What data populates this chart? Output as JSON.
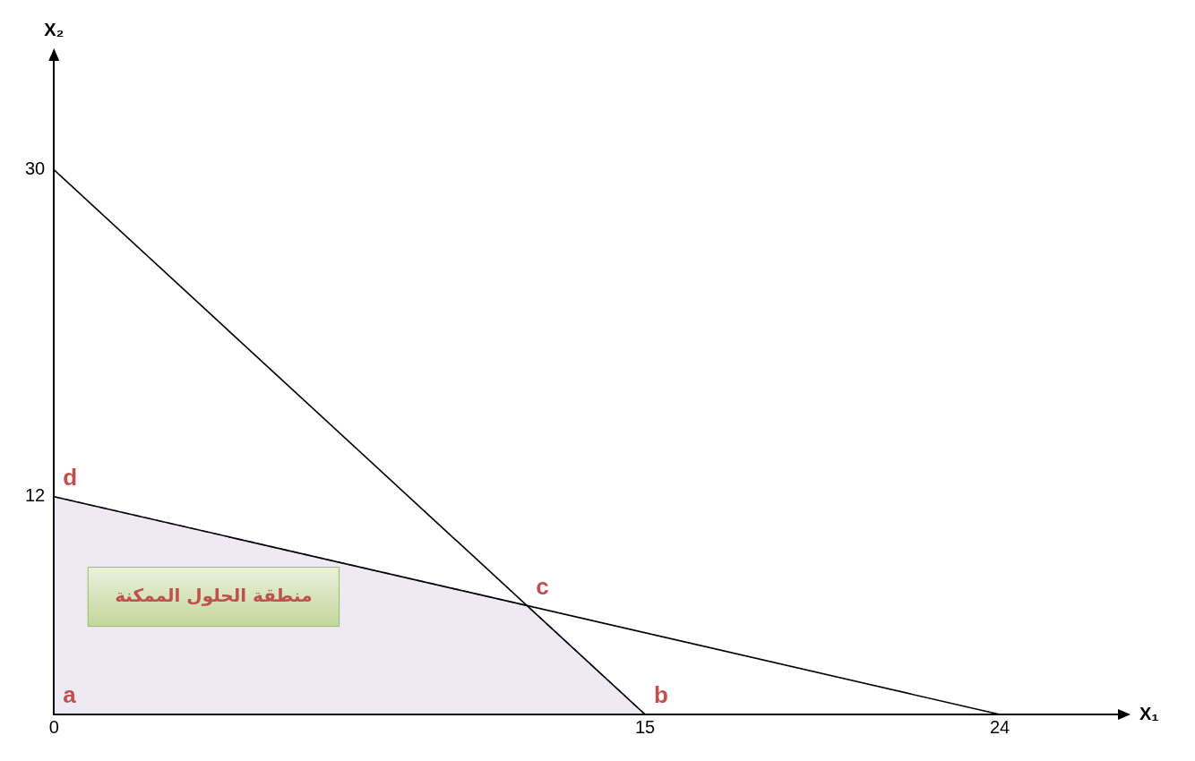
{
  "chart_data": {
    "type": "line",
    "xlabel": "X₁",
    "ylabel": "X₂",
    "xlim": [
      0,
      27
    ],
    "ylim": [
      0,
      36
    ],
    "xticks": [
      0,
      15,
      24
    ],
    "yticks": [
      12,
      30
    ],
    "grid": false,
    "marker": "none",
    "series": [
      {
        "x": [
          0,
          15
        ],
        "values": [
          30,
          0
        ],
        "color": "#000000"
      },
      {
        "x": [
          0,
          24
        ],
        "values": [
          12,
          0
        ],
        "color": "#000000"
      },
      {
        "type": "area",
        "x": [
          0,
          12,
          15
        ],
        "values": [
          12,
          6,
          0
        ],
        "color": "#8064a2",
        "line_style": "dashed"
      }
    ],
    "annotations": [
      {
        "text": "a",
        "x": 0,
        "y": 0
      },
      {
        "text": "b",
        "x": 15,
        "y": 0
      },
      {
        "text": "c",
        "x": 12,
        "y": 6
      },
      {
        "text": "d",
        "x": 0,
        "y": 12
      },
      "منطقة الحلول الممكنة"
    ]
  }
}
